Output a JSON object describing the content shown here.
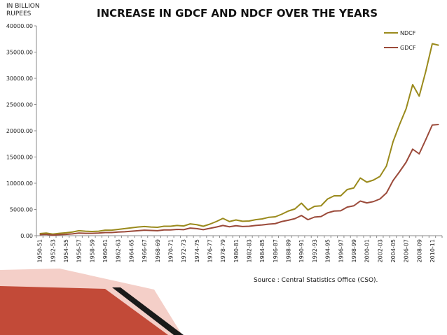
{
  "unit_label": [
    "IN BILLION",
    "RUPEES"
  ],
  "source": "Source : Central Statistics Office (CSO).",
  "colors": {
    "ndcf": "#9a8a1c",
    "gdcf": "#9b4a3a",
    "axis": "#8a8a8a",
    "footer_pink": "#f4cfc8",
    "footer_red": "#c24a38",
    "footer_dark": "#1a1a1a"
  },
  "chart_data": {
    "type": "line",
    "title": "INCREASE IN GDCF AND NDCF OVER THE YEARS",
    "xlabel": "",
    "ylabel": "IN BILLION RUPEES",
    "ylim": [
      0,
      40000
    ],
    "yticks": [
      "0.00",
      "5000.00",
      "10000.00",
      "15000.00",
      "20000.00",
      "25000.00",
      "30000.00",
      "35000.00",
      "40000.00"
    ],
    "legend_position": "top-right",
    "grid": false,
    "x": [
      "1950-51",
      "1951-52",
      "1952-53",
      "1953-54",
      "1954-55",
      "1955-56",
      "1956-57",
      "1957-58",
      "1958-59",
      "1959-60",
      "1960-61",
      "1961-62",
      "1962-63",
      "1963-64",
      "1964-65",
      "1965-66",
      "1966-67",
      "1967-68",
      "1968-69",
      "1969-70",
      "1970-71",
      "1971-72",
      "1972-73",
      "1973-74",
      "1974-75",
      "1975-76",
      "1976-77",
      "1977-78",
      "1978-79",
      "1979-80",
      "1980-81",
      "1981-82",
      "1982-83",
      "1983-84",
      "1984-85",
      "1985-86",
      "1986-87",
      "1987-88",
      "1988-89",
      "1989-90",
      "1990-91",
      "1991-92",
      "1992-93",
      "1993-94",
      "1994-95",
      "1995-96",
      "1996-97",
      "1997-98",
      "1998-99",
      "1999-00",
      "2000-01",
      "2001-02",
      "2002-03",
      "2003-04",
      "2004-05",
      "2005-06",
      "2006-07",
      "2007-08",
      "2008-09",
      "2009-10",
      "2010-11",
      "2011-12"
    ],
    "x_tick_labels": [
      "1950-51",
      "1952-53",
      "1954-55",
      "1956-57",
      "1958-59",
      "1960-61",
      "1962-63",
      "1964-65",
      "1966-67",
      "1968-69",
      "1970-71",
      "1972-73",
      "1974-75",
      "1976-77",
      "1978-79",
      "1980-81",
      "1982-83",
      "1984-85",
      "1986-87",
      "1988-89",
      "1990-91",
      "1992-93",
      "1994-95",
      "1996-97",
      "1998-99",
      "2000-01",
      "2002-03",
      "2004-05",
      "2006-07",
      "2008-09",
      "2010-11"
    ],
    "series": [
      {
        "name": "NDCF",
        "values": [
          400,
          500,
          300,
          450,
          550,
          700,
          950,
          850,
          800,
          850,
          1050,
          1050,
          1200,
          1350,
          1500,
          1650,
          1750,
          1650,
          1600,
          1800,
          1800,
          1950,
          1850,
          2250,
          2100,
          1800,
          2200,
          2700,
          3300,
          2700,
          3000,
          2750,
          2800,
          3050,
          3200,
          3500,
          3600,
          4100,
          4700,
          5100,
          6200,
          4900,
          5600,
          5700,
          7000,
          7600,
          7600,
          8800,
          9100,
          11000,
          10200,
          10600,
          11300,
          13300,
          17900,
          21200,
          24200,
          28800,
          26600,
          31300,
          36600,
          36300
        ]
      },
      {
        "name": "GDCF",
        "values": [
          200,
          250,
          100,
          200,
          250,
          350,
          500,
          450,
          450,
          500,
          600,
          600,
          700,
          750,
          850,
          950,
          1050,
          1000,
          950,
          1100,
          1100,
          1200,
          1150,
          1450,
          1350,
          1150,
          1400,
          1650,
          1950,
          1700,
          1900,
          1750,
          1800,
          1950,
          2050,
          2200,
          2300,
          2700,
          2950,
          3250,
          3850,
          3050,
          3550,
          3650,
          4350,
          4700,
          4750,
          5450,
          5700,
          6600,
          6250,
          6500,
          7000,
          8150,
          10500,
          12200,
          14000,
          16500,
          15600,
          18300,
          21100,
          21200
        ]
      }
    ]
  }
}
